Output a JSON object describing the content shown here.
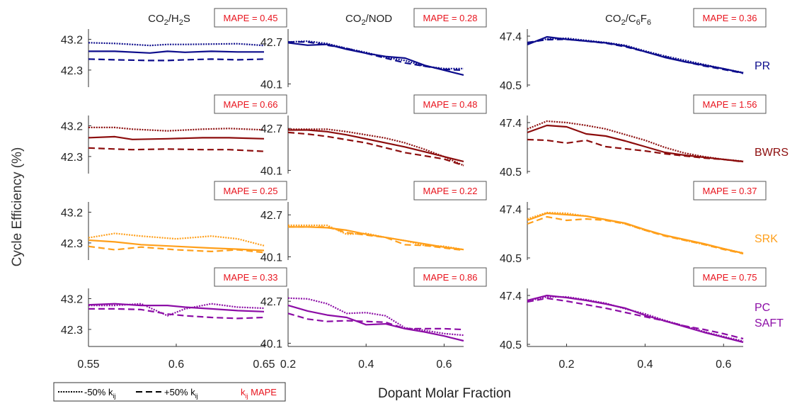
{
  "figure": {
    "ylabel": "Cycle Efficiency (%)",
    "xlabel": "Dopant Molar Fraction",
    "columns": [
      {
        "title_parts": [
          {
            "t": "CO"
          },
          {
            "t": "2",
            "sub": true
          },
          {
            "t": "/H"
          },
          {
            "t": "2",
            "sub": true
          },
          {
            "t": "S"
          }
        ]
      },
      {
        "title_parts": [
          {
            "t": "CO"
          },
          {
            "t": "2",
            "sub": true
          },
          {
            "t": "/NOD"
          }
        ]
      },
      {
        "title_parts": [
          {
            "t": "CO"
          },
          {
            "t": "2",
            "sub": true
          },
          {
            "t": "/C"
          },
          {
            "t": "6",
            "sub": true
          },
          {
            "t": "F"
          },
          {
            "t": "6",
            "sub": true
          }
        ]
      }
    ],
    "rows": [
      {
        "model": "PR",
        "color": "#0d0d8c"
      },
      {
        "model": "BWRS",
        "color": "#8c0d0d"
      },
      {
        "model": "SRK",
        "color": "#ff9f1a"
      },
      {
        "model": "PC SAFT",
        "model_lines": [
          "PC",
          "SAFT"
        ],
        "color": "#8c0da6"
      }
    ],
    "legend": {
      "dotted_label": "-50% k",
      "dotted_sub": "ij",
      "dashed_label": "+50% k",
      "dashed_sub": "ij",
      "mape_k": "k",
      "mape_sub": "ij",
      "mape_label": " MAPE",
      "mape_color": "#e8141e"
    },
    "mape_color": "#e8141e"
  },
  "chart_data": [
    {
      "type": "line",
      "row": 0,
      "col": 0,
      "model": "PR",
      "xlim": [
        0.55,
        0.65
      ],
      "ylim": [
        41.8,
        43.5
      ],
      "yticks": [
        "43.2",
        "42.3"
      ],
      "ytick_values": [
        43.2,
        42.3
      ],
      "mape": "MAPE = 0.45",
      "x": [
        0.55,
        0.565,
        0.585,
        0.595,
        0.605,
        0.62,
        0.635,
        0.65
      ],
      "series": [
        {
          "style": "solid",
          "values": [
            42.85,
            42.85,
            42.8,
            42.85,
            42.82,
            42.85,
            42.83,
            42.83
          ]
        },
        {
          "style": "dotted",
          "values": [
            43.1,
            43.08,
            43.02,
            43.05,
            43.05,
            43.06,
            43.07,
            43.02
          ]
        },
        {
          "style": "dashed",
          "values": [
            42.62,
            42.6,
            42.58,
            42.58,
            42.6,
            42.62,
            42.6,
            42.62
          ]
        }
      ]
    },
    {
      "type": "line",
      "row": 0,
      "col": 1,
      "model": "PR",
      "xlim": [
        0.2,
        0.65
      ],
      "ylim": [
        39.9,
        43.5
      ],
      "yticks": [
        "42.7",
        "40.1"
      ],
      "ytick_values": [
        42.7,
        40.1
      ],
      "mape": "MAPE = 0.28",
      "x": [
        0.2,
        0.25,
        0.3,
        0.35,
        0.4,
        0.45,
        0.5,
        0.55,
        0.6,
        0.65
      ],
      "series": [
        {
          "style": "solid",
          "values": [
            42.65,
            42.5,
            42.55,
            42.25,
            42.0,
            41.8,
            41.7,
            41.25,
            40.95,
            40.65
          ]
        },
        {
          "style": "dotted",
          "values": [
            42.7,
            42.75,
            42.6,
            42.3,
            42.05,
            41.75,
            41.55,
            41.2,
            41.05,
            41.05
          ]
        },
        {
          "style": "dashed",
          "values": [
            42.7,
            42.7,
            42.5,
            42.3,
            42.0,
            41.7,
            41.4,
            41.2,
            41.0,
            40.95
          ]
        }
      ]
    },
    {
      "type": "line",
      "row": 0,
      "col": 2,
      "model": "PR",
      "xlim": [
        0.1,
        0.65
      ],
      "ylim": [
        40.2,
        48.4
      ],
      "yticks": [
        "47.4",
        "40.5"
      ],
      "ytick_values": [
        47.4,
        40.5
      ],
      "mape": "MAPE = 0.36",
      "x": [
        0.1,
        0.15,
        0.2,
        0.25,
        0.3,
        0.35,
        0.4,
        0.45,
        0.5,
        0.55,
        0.6,
        0.65
      ],
      "series": [
        {
          "style": "solid",
          "values": [
            46.2,
            47.3,
            46.95,
            46.7,
            46.45,
            46.0,
            45.2,
            44.4,
            43.8,
            43.3,
            42.8,
            42.2
          ]
        },
        {
          "style": "dotted",
          "values": [
            46.4,
            47.0,
            47.1,
            46.8,
            46.5,
            46.1,
            45.3,
            44.6,
            44.0,
            43.4,
            42.8,
            42.25
          ]
        },
        {
          "style": "dashed",
          "values": [
            46.5,
            46.9,
            46.95,
            46.7,
            46.4,
            45.9,
            45.2,
            44.5,
            43.8,
            43.2,
            42.7,
            42.15
          ]
        }
      ]
    },
    {
      "type": "line",
      "row": 1,
      "col": 0,
      "model": "BWRS",
      "xlim": [
        0.55,
        0.65
      ],
      "ylim": [
        41.8,
        43.5
      ],
      "yticks": [
        "43.2",
        "42.3"
      ],
      "ytick_values": [
        43.2,
        42.3
      ],
      "mape": "MAPE = 0.66",
      "x": [
        0.55,
        0.565,
        0.575,
        0.595,
        0.615,
        0.63,
        0.65
      ],
      "series": [
        {
          "style": "solid",
          "values": [
            42.85,
            42.88,
            42.8,
            42.82,
            42.85,
            42.85,
            42.82
          ]
        },
        {
          "style": "dotted",
          "values": [
            43.15,
            43.15,
            43.1,
            43.05,
            43.1,
            43.12,
            43.08
          ]
        },
        {
          "style": "dashed",
          "values": [
            42.55,
            42.52,
            42.5,
            42.52,
            42.5,
            42.5,
            42.45
          ]
        }
      ]
    },
    {
      "type": "line",
      "row": 1,
      "col": 1,
      "model": "BWRS",
      "xlim": [
        0.2,
        0.65
      ],
      "ylim": [
        39.9,
        43.5
      ],
      "yticks": [
        "42.7",
        "40.1"
      ],
      "ytick_values": [
        42.7,
        40.1
      ],
      "mape": "MAPE = 0.48",
      "x": [
        0.2,
        0.25,
        0.3,
        0.35,
        0.4,
        0.45,
        0.5,
        0.55,
        0.6,
        0.65
      ],
      "series": [
        {
          "style": "solid",
          "values": [
            42.6,
            42.6,
            42.5,
            42.3,
            42.05,
            41.8,
            41.55,
            41.25,
            40.95,
            40.65
          ]
        },
        {
          "style": "dotted",
          "values": [
            42.65,
            42.65,
            42.65,
            42.5,
            42.3,
            42.1,
            41.8,
            41.4,
            40.95,
            40.4
          ]
        },
        {
          "style": "dashed",
          "values": [
            42.45,
            42.35,
            42.2,
            42.0,
            41.8,
            41.5,
            41.2,
            41.0,
            40.8,
            40.4
          ]
        }
      ]
    },
    {
      "type": "line",
      "row": 1,
      "col": 2,
      "model": "BWRS",
      "xlim": [
        0.1,
        0.65
      ],
      "ylim": [
        40.2,
        48.4
      ],
      "yticks": [
        "47.4",
        "40.5"
      ],
      "ytick_values": [
        47.4,
        40.5
      ],
      "mape": "MAPE = 1.56",
      "x": [
        0.1,
        0.15,
        0.2,
        0.25,
        0.3,
        0.35,
        0.4,
        0.45,
        0.5,
        0.55,
        0.6,
        0.65
      ],
      "series": [
        {
          "style": "solid",
          "values": [
            46.0,
            47.0,
            46.8,
            45.8,
            45.5,
            44.8,
            44.0,
            43.2,
            42.8,
            42.5,
            42.2,
            41.9
          ]
        },
        {
          "style": "dotted",
          "values": [
            46.5,
            47.6,
            47.4,
            47.0,
            46.5,
            45.7,
            44.9,
            43.9,
            43.1,
            42.6,
            42.2,
            41.95
          ]
        },
        {
          "style": "dashed",
          "values": [
            45.0,
            44.9,
            44.5,
            44.9,
            44.0,
            43.7,
            43.4,
            43.0,
            42.7,
            42.4,
            42.2,
            41.85
          ]
        }
      ]
    },
    {
      "type": "line",
      "row": 2,
      "col": 0,
      "model": "SRK",
      "xlim": [
        0.55,
        0.65
      ],
      "ylim": [
        41.8,
        43.5
      ],
      "yticks": [
        "43.2",
        "42.3"
      ],
      "ytick_values": [
        43.2,
        42.3
      ],
      "mape": "MAPE = 0.25",
      "x": [
        0.55,
        0.565,
        0.58,
        0.6,
        0.62,
        0.635,
        0.65
      ],
      "series": [
        {
          "style": "solid",
          "values": [
            42.38,
            42.33,
            42.25,
            42.2,
            42.15,
            42.12,
            42.08
          ]
        },
        {
          "style": "dotted",
          "values": [
            42.45,
            42.58,
            42.5,
            42.42,
            42.5,
            42.42,
            42.22
          ]
        },
        {
          "style": "dashed",
          "values": [
            42.2,
            42.1,
            42.18,
            42.1,
            42.05,
            42.1,
            42.02
          ]
        }
      ]
    },
    {
      "type": "line",
      "row": 2,
      "col": 1,
      "model": "SRK",
      "xlim": [
        0.2,
        0.65
      ],
      "ylim": [
        39.9,
        43.5
      ],
      "yticks": [
        "42.7",
        "40.1"
      ],
      "ytick_values": [
        42.7,
        40.1
      ],
      "mape": "MAPE = 0.22",
      "x": [
        0.2,
        0.25,
        0.3,
        0.35,
        0.4,
        0.45,
        0.5,
        0.55,
        0.6,
        0.65
      ],
      "series": [
        {
          "style": "solid",
          "values": [
            41.95,
            41.95,
            41.9,
            41.75,
            41.5,
            41.3,
            41.1,
            40.9,
            40.7,
            40.55
          ]
        },
        {
          "style": "dotted",
          "values": [
            42.05,
            42.05,
            42.05,
            41.5,
            41.55,
            41.3,
            41.1,
            40.8,
            40.75,
            40.55
          ]
        },
        {
          "style": "dashed",
          "values": [
            41.95,
            41.95,
            41.95,
            41.6,
            41.45,
            41.3,
            40.85,
            40.8,
            40.65,
            40.5
          ]
        }
      ]
    },
    {
      "type": "line",
      "row": 2,
      "col": 2,
      "model": "SRK",
      "xlim": [
        0.1,
        0.65
      ],
      "ylim": [
        40.2,
        48.4
      ],
      "yticks": [
        "47.4",
        "40.5"
      ],
      "ytick_values": [
        47.4,
        40.5
      ],
      "mape": "MAPE = 0.37",
      "x": [
        0.1,
        0.15,
        0.2,
        0.25,
        0.3,
        0.35,
        0.4,
        0.45,
        0.5,
        0.55,
        0.6,
        0.65
      ],
      "series": [
        {
          "style": "solid",
          "values": [
            45.8,
            46.8,
            46.6,
            46.4,
            45.9,
            45.4,
            44.5,
            43.7,
            43.1,
            42.5,
            41.8,
            41.15
          ]
        },
        {
          "style": "dotted",
          "values": [
            46.0,
            46.9,
            46.8,
            46.4,
            45.9,
            45.3,
            44.4,
            43.7,
            43.0,
            42.4,
            41.8,
            41.2
          ]
        },
        {
          "style": "dashed",
          "values": [
            45.3,
            46.3,
            45.8,
            46.0,
            45.8,
            45.3,
            44.4,
            43.6,
            43.0,
            42.4,
            41.7,
            41.1
          ]
        }
      ]
    },
    {
      "type": "line",
      "row": 3,
      "col": 0,
      "model": "PC SAFT",
      "xlim": [
        0.55,
        0.65
      ],
      "ylim": [
        41.8,
        43.5
      ],
      "yticks": [
        "43.2",
        "42.3"
      ],
      "ytick_values": [
        43.2,
        42.3
      ],
      "mape": "MAPE = 0.33",
      "x": [
        0.55,
        0.565,
        0.58,
        0.595,
        0.605,
        0.62,
        0.635,
        0.65
      ],
      "series": [
        {
          "style": "solid",
          "values": [
            43.02,
            43.05,
            43.0,
            43.0,
            42.95,
            42.9,
            42.85,
            42.82
          ]
        },
        {
          "style": "dotted",
          "values": [
            43.0,
            43.0,
            43.05,
            42.7,
            42.9,
            43.05,
            42.95,
            42.92
          ]
        },
        {
          "style": "dashed",
          "values": [
            42.9,
            42.9,
            42.88,
            42.75,
            42.7,
            42.65,
            42.62,
            42.65
          ]
        }
      ]
    },
    {
      "type": "line",
      "row": 3,
      "col": 1,
      "model": "PC SAFT",
      "xlim": [
        0.2,
        0.65
      ],
      "ylim": [
        39.9,
        43.5
      ],
      "yticks": [
        "42.7",
        "40.1"
      ],
      "ytick_values": [
        42.7,
        40.1
      ],
      "mape": "MAPE = 0.86",
      "x": [
        0.2,
        0.25,
        0.3,
        0.35,
        0.4,
        0.45,
        0.5,
        0.55,
        0.6,
        0.65
      ],
      "series": [
        {
          "style": "solid",
          "values": [
            42.45,
            42.1,
            41.85,
            41.7,
            41.25,
            41.3,
            41.0,
            40.8,
            40.55,
            40.25
          ]
        },
        {
          "style": "dotted",
          "values": [
            42.9,
            42.85,
            42.55,
            41.95,
            42.0,
            41.8,
            41.05,
            40.9,
            40.7,
            40.6
          ]
        },
        {
          "style": "dashed",
          "values": [
            41.95,
            41.6,
            41.45,
            41.5,
            41.45,
            41.4,
            41.0,
            41.0,
            41.0,
            40.95
          ]
        }
      ]
    },
    {
      "type": "line",
      "row": 3,
      "col": 2,
      "model": "PC SAFT",
      "xlim": [
        0.1,
        0.65
      ],
      "ylim": [
        40.2,
        48.4
      ],
      "yticks": [
        "47.4",
        "40.5"
      ],
      "ytick_values": [
        47.4,
        40.5
      ],
      "mape": "MAPE = 0.75",
      "x": [
        0.1,
        0.15,
        0.2,
        0.25,
        0.3,
        0.35,
        0.4,
        0.45,
        0.5,
        0.55,
        0.6,
        0.65
      ],
      "series": [
        {
          "style": "solid",
          "values": [
            46.7,
            47.4,
            47.1,
            46.7,
            46.2,
            45.6,
            44.6,
            43.8,
            43.0,
            42.2,
            41.5,
            40.8
          ]
        },
        {
          "style": "dotted",
          "values": [
            46.6,
            47.2,
            47.2,
            46.8,
            46.3,
            45.5,
            44.8,
            43.9,
            43.1,
            42.3,
            41.6,
            40.95
          ]
        },
        {
          "style": "dashed",
          "values": [
            46.5,
            47.0,
            46.6,
            46.1,
            45.6,
            45.0,
            44.4,
            43.8,
            43.1,
            42.6,
            42.0,
            41.3
          ]
        }
      ]
    }
  ],
  "x_ticks": [
    {
      "values": [
        0.55,
        0.6,
        0.65
      ],
      "labels": [
        "0.55",
        "0.6",
        "0.65"
      ]
    },
    {
      "values": [
        0.2,
        0.4,
        0.6
      ],
      "labels": [
        "0.2",
        "0.4",
        "0.6"
      ]
    },
    {
      "values": [
        0.2,
        0.4,
        0.6
      ],
      "labels": [
        "0.2",
        "0.4",
        "0.6"
      ]
    }
  ]
}
